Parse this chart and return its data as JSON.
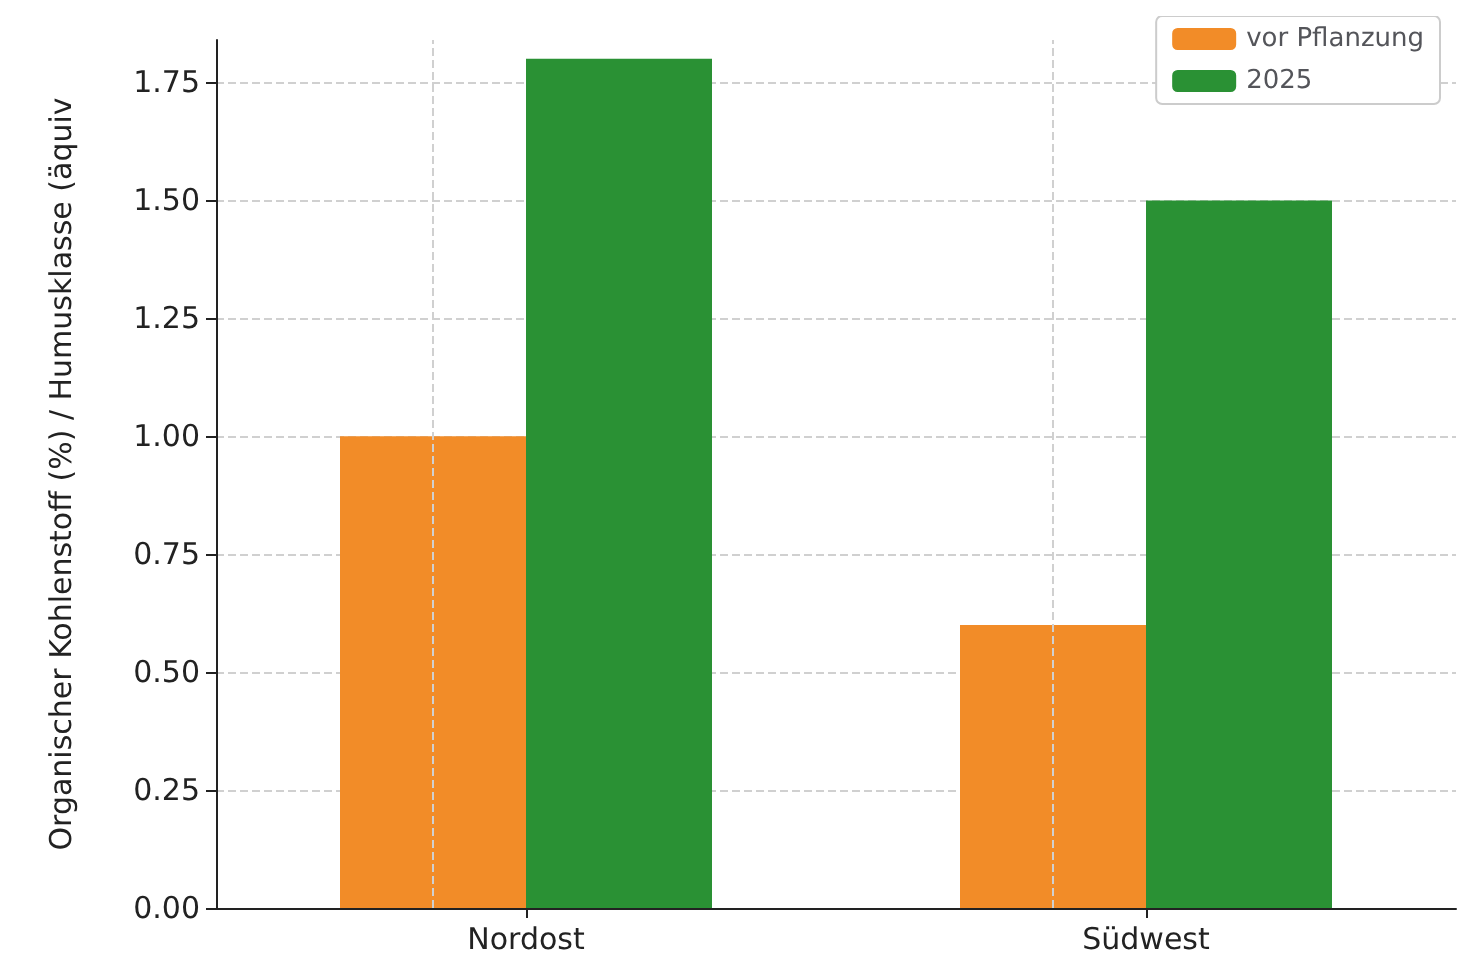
{
  "chart_data": {
    "type": "bar",
    "ylabel": "Organischer Kohlenstoff (%) / Humusklasse (äquiv",
    "categories": [
      "Nordost",
      "Südwest"
    ],
    "series": [
      {
        "name": "vor Pflanzung",
        "color": "#f28c28",
        "values": [
          1.0,
          0.6
        ]
      },
      {
        "name": "2025",
        "color": "#2a9134",
        "values": [
          1.8,
          1.5
        ]
      }
    ],
    "ylim": [
      0,
      1.84
    ],
    "yticks": [
      {
        "value": 0,
        "label": "0.00"
      },
      {
        "value": 0.25,
        "label": "0.25"
      },
      {
        "value": 0.5,
        "label": "0.50"
      },
      {
        "value": 0.75,
        "label": "0.75"
      },
      {
        "value": 1,
        "label": "1.00"
      },
      {
        "value": 1.25,
        "label": "1.25"
      },
      {
        "value": 1.5,
        "label": "1.50"
      },
      {
        "value": 1.75,
        "label": "1.75"
      }
    ],
    "grid": true,
    "legend": "top right"
  }
}
